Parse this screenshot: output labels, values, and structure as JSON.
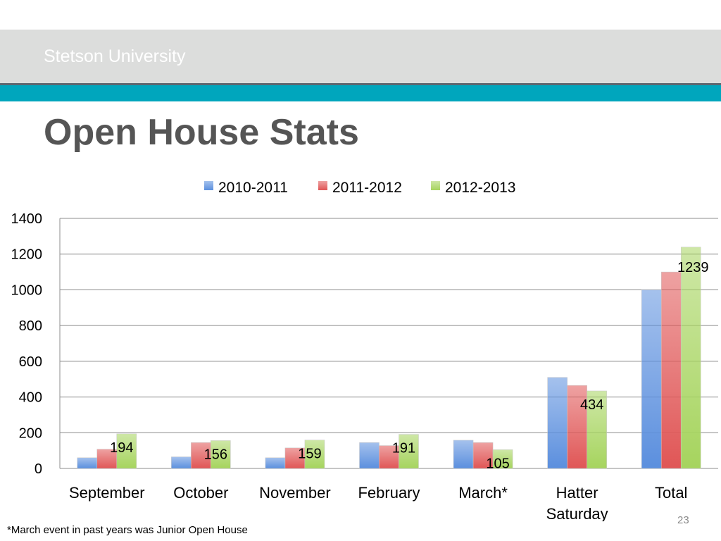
{
  "slide": {
    "header_text": "Stetson University",
    "title": "Open House Stats",
    "footnote": "*March event in past years was Junior Open House",
    "page_number": "23"
  },
  "colors": {
    "header_band": "#dcdddc",
    "teal_band": "#00a6bd",
    "title": "#555555"
  },
  "chart_data": {
    "type": "bar",
    "title": "",
    "xlabel": "",
    "ylabel": "",
    "categories": [
      [
        "September"
      ],
      [
        "October"
      ],
      [
        "November"
      ],
      [
        "February"
      ],
      [
        "March*"
      ],
      [
        "Hatter",
        "Saturday"
      ],
      [
        "Total"
      ]
    ],
    "series": [
      {
        "name": "2010-2011",
        "color": "#5b8fde",
        "values": [
          60,
          65,
          60,
          145,
          158,
          510,
          1000
        ]
      },
      {
        "name": "2011-2012",
        "color": "#e05656",
        "values": [
          108,
          145,
          115,
          128,
          145,
          465,
          1100
        ]
      },
      {
        "name": "2012-2013",
        "color": "#a6d45e",
        "values": [
          194,
          156,
          159,
          191,
          105,
          434,
          1239
        ]
      }
    ],
    "data_labels": {
      "series": "2012-2013",
      "values": [
        "194",
        "156",
        "159",
        "191",
        "105",
        "434",
        "1239"
      ]
    },
    "y_ticks": [
      0,
      200,
      400,
      600,
      800,
      1000,
      1200,
      1400
    ],
    "ylim": [
      0,
      1400
    ],
    "grid": true,
    "legend_position": "top"
  }
}
